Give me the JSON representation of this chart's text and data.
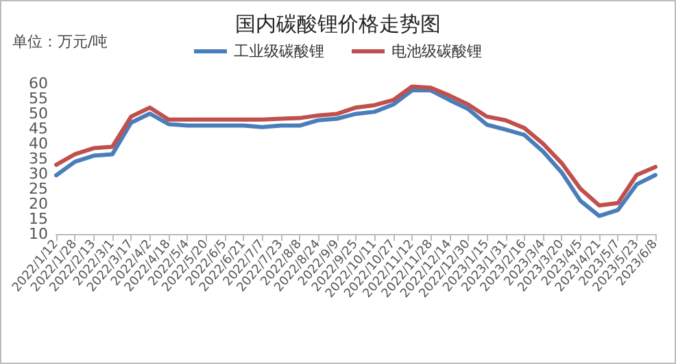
{
  "chart_data": {
    "type": "line",
    "title": "国内碳酸锂价格走势图",
    "annotations": [
      "单位：万元/吨"
    ],
    "categories": [
      "2022/1/12",
      "2022/1/28",
      "2022/2/13",
      "2022/3/1",
      "2022/3/17",
      "2022/4/2",
      "2022/4/18",
      "2022/5/4",
      "2022/5/20",
      "2022/6/5",
      "2022/6/21",
      "2022/7/7",
      "2022/7/23",
      "2022/8/8",
      "2022/8/24",
      "2022/9/9",
      "2022/9/25",
      "2022/10/11",
      "2022/10/27",
      "2022/11/12",
      "2022/11/28",
      "2022/12/14",
      "2022/12/30",
      "2023/1/15",
      "2023/1/31",
      "2023/2/16",
      "2023/3/4",
      "2023/3/20",
      "2023/4/5",
      "2023/4/21",
      "2023/5/7",
      "2023/5/23",
      "2023/6/8"
    ],
    "series": [
      {
        "name": "工业级碳酸锂",
        "color": "#4a7ebb",
        "values": [
          29.5,
          34,
          36,
          36.5,
          47,
          50,
          46.5,
          46,
          46,
          46,
          46,
          45.5,
          46,
          46,
          47.8,
          48.3,
          49.9,
          50.6,
          53,
          57.7,
          57.7,
          54.5,
          51.5,
          46.3,
          44.7,
          42.9,
          37.4,
          30.4,
          21,
          16,
          18,
          26.5,
          29.6
        ]
      },
      {
        "name": "电池级碳酸锂",
        "color": "#c0504d",
        "values": [
          33,
          36.5,
          38.5,
          39,
          49,
          52,
          48,
          48,
          48,
          48,
          48,
          48,
          48.3,
          48.5,
          49.4,
          49.9,
          52,
          52.8,
          54.5,
          59,
          58.6,
          56,
          53,
          49,
          47.8,
          45.2,
          40,
          33.5,
          25,
          19.5,
          20.3,
          29.6,
          32.3
        ]
      }
    ],
    "ylim": [
      10,
      60
    ],
    "yticks": [
      10,
      15,
      20,
      25,
      30,
      35,
      40,
      45,
      50,
      55,
      60
    ],
    "grid": false,
    "legend": "top",
    "marker": "none",
    "line_style": "solid"
  }
}
